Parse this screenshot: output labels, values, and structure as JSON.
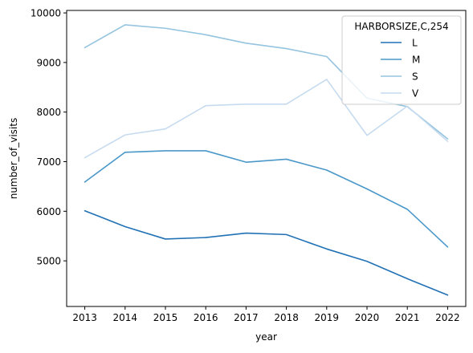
{
  "chart_data": {
    "type": "line",
    "xlabel": "year",
    "ylabel": "number_of_visits",
    "x": [
      2013,
      2014,
      2015,
      2016,
      2017,
      2018,
      2019,
      2020,
      2021,
      2022
    ],
    "xlim": [
      2012.55,
      2022.45
    ],
    "ylim": [
      4080,
      10050
    ],
    "yticks": [
      5000,
      6000,
      7000,
      8000,
      9000,
      10000
    ],
    "grid": false,
    "legend": {
      "title": "HARBORSIZE,C,254",
      "position": "top-right"
    },
    "series": [
      {
        "name": "L",
        "color": "#2171b5",
        "values": [
          6010,
          5690,
          5440,
          5470,
          5560,
          5530,
          5240,
          4990,
          4640,
          4310
        ]
      },
      {
        "name": "M",
        "color": "#4a98c9",
        "values": [
          6590,
          7190,
          7220,
          7220,
          6990,
          7050,
          6830,
          6450,
          6040,
          5280
        ]
      },
      {
        "name": "S",
        "color": "#94c4df",
        "values": [
          9300,
          9760,
          9690,
          9560,
          9390,
          9280,
          9120,
          8280,
          8110,
          7460
        ]
      },
      {
        "name": "V",
        "color": "#c6dbef",
        "values": [
          7080,
          7540,
          7660,
          8130,
          8160,
          8160,
          8660,
          7530,
          8120,
          7410
        ]
      }
    ]
  }
}
